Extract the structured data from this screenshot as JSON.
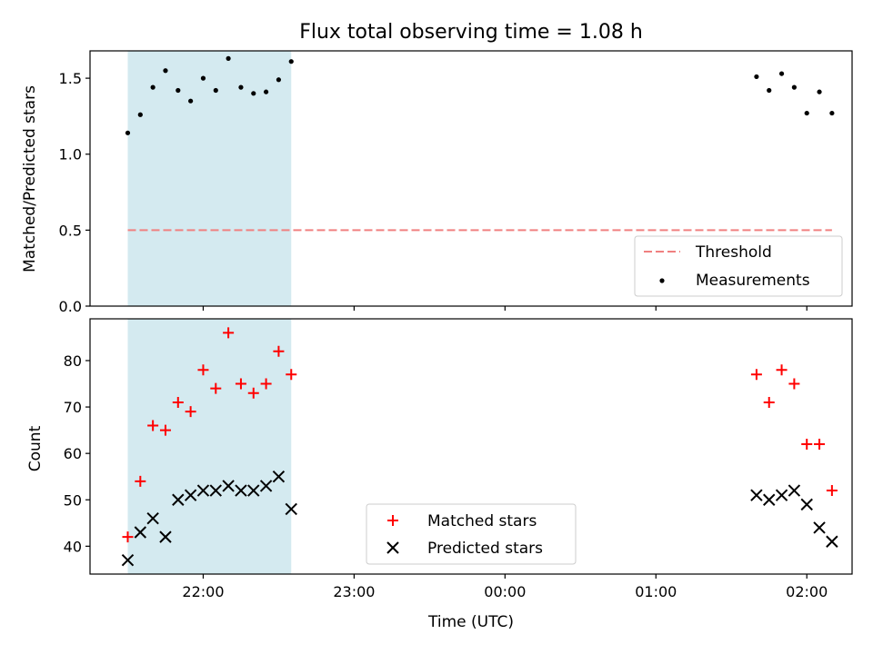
{
  "chart_data": [
    {
      "type": "scatter",
      "title": "Flux total observing time = 1.08 h",
      "xlabel": "",
      "ylabel": "Matched/Predicted stars",
      "xlim": [
        "21:15",
        "02:18"
      ],
      "ylim": [
        0,
        1.68
      ],
      "yticks": [
        0.0,
        0.5,
        1.0,
        1.5
      ],
      "ytick_labels": [
        "0.0",
        "0.5",
        "1.0",
        "1.5"
      ],
      "legend_position": "lower-right",
      "highlight_band": {
        "from": "21:30",
        "to": "22:35",
        "color": "#d4eaf0"
      },
      "threshold": {
        "name": "Threshold",
        "y": 0.5,
        "x": [
          "21:30",
          "02:10"
        ],
        "style": "dashed",
        "color": "#f08080"
      },
      "series": [
        {
          "name": "Measurements",
          "marker": "dot",
          "color": "#000000",
          "x": [
            "21:30",
            "21:35",
            "21:40",
            "21:45",
            "21:50",
            "21:55",
            "22:00",
            "22:05",
            "22:10",
            "22:15",
            "22:20",
            "22:25",
            "22:30",
            "22:35",
            "01:40",
            "01:45",
            "01:50",
            "01:55",
            "02:00",
            "02:05",
            "02:10"
          ],
          "y": [
            1.14,
            1.26,
            1.44,
            1.55,
            1.42,
            1.35,
            1.5,
            1.42,
            1.63,
            1.44,
            1.4,
            1.41,
            1.49,
            1.61,
            1.51,
            1.42,
            1.53,
            1.44,
            1.27,
            1.41,
            1.27
          ]
        }
      ]
    },
    {
      "type": "scatter",
      "title": "",
      "xlabel": "Time (UTC)",
      "ylabel": "Count",
      "xlim": [
        "21:15",
        "02:18"
      ],
      "ylim": [
        34,
        89
      ],
      "yticks": [
        40,
        50,
        60,
        70,
        80
      ],
      "xticks": [
        "22:00",
        "23:00",
        "00:00",
        "01:00",
        "02:00"
      ],
      "legend_position": "lower-center",
      "highlight_band": {
        "from": "21:30",
        "to": "22:35",
        "color": "#d4eaf0"
      },
      "series": [
        {
          "name": "Matched stars",
          "marker": "plus",
          "color": "#ff0000",
          "x": [
            "21:30",
            "21:35",
            "21:40",
            "21:45",
            "21:50",
            "21:55",
            "22:00",
            "22:05",
            "22:10",
            "22:15",
            "22:20",
            "22:25",
            "22:30",
            "22:35",
            "01:40",
            "01:45",
            "01:50",
            "01:55",
            "02:00",
            "02:05",
            "02:10"
          ],
          "y": [
            42,
            54,
            66,
            65,
            71,
            69,
            78,
            74,
            86,
            75,
            73,
            75,
            82,
            77,
            77,
            71,
            78,
            75,
            62,
            62,
            52
          ]
        },
        {
          "name": "Predicted stars",
          "marker": "x",
          "color": "#000000",
          "x": [
            "21:30",
            "21:35",
            "21:40",
            "21:45",
            "21:50",
            "21:55",
            "22:00",
            "22:05",
            "22:10",
            "22:15",
            "22:20",
            "22:25",
            "22:30",
            "22:35",
            "01:40",
            "01:45",
            "01:50",
            "01:55",
            "02:00",
            "02:05",
            "02:10"
          ],
          "y": [
            37,
            43,
            46,
            42,
            50,
            51,
            52,
            52,
            53,
            52,
            52,
            53,
            55,
            48,
            51,
            50,
            51,
            52,
            49,
            44,
            41
          ]
        }
      ]
    }
  ]
}
